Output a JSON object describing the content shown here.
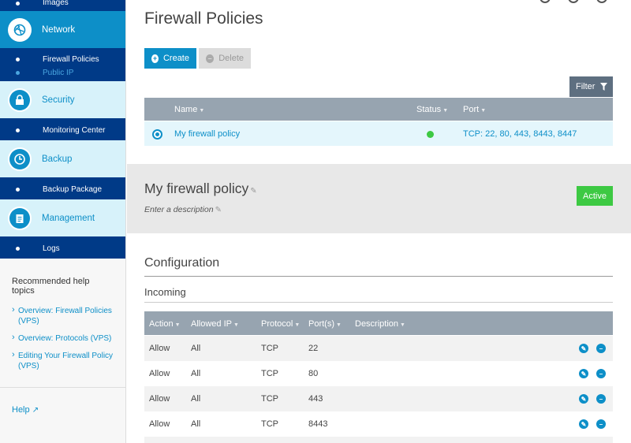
{
  "sidebar": {
    "top_sub": [
      "Images"
    ],
    "network": {
      "label": "Network",
      "sub": [
        "Firewall Policies",
        "Public IP"
      ]
    },
    "security": {
      "label": "Security",
      "sub": [
        "Monitoring Center"
      ]
    },
    "backup": {
      "label": "Backup",
      "sub": [
        "Backup Package"
      ]
    },
    "management": {
      "label": "Management",
      "sub": [
        "Logs"
      ]
    },
    "help_title": "Recommended help topics",
    "help_links": [
      "Overview: Firewall Policies (VPS)",
      "Overview: Protocols (VPS)",
      "Editing Your Firewall Policy (VPS)"
    ],
    "help": "Help"
  },
  "main": {
    "title": "Firewall Policies",
    "create_label": "Create",
    "delete_label": "Delete",
    "filter_label": "Filter",
    "policy_table": {
      "headers": {
        "name": "Name",
        "status": "Status",
        "port": "Port"
      },
      "row": {
        "name": "My firewall policy",
        "port": "TCP: 22, 80, 443, 8443, 8447"
      }
    },
    "detail": {
      "name": "My firewall policy",
      "description_placeholder": "Enter a description",
      "status": "Active"
    },
    "config_title": "Configuration",
    "incoming_title": "Incoming",
    "incoming_table": {
      "headers": {
        "action": "Action",
        "allowed_ip": "Allowed IP",
        "protocol": "Protocol",
        "ports": "Port(s)",
        "description": "Description"
      },
      "rows": [
        {
          "action": "Allow",
          "allowed_ip": "All",
          "protocol": "TCP",
          "ports": "22"
        },
        {
          "action": "Allow",
          "allowed_ip": "All",
          "protocol": "TCP",
          "ports": "80"
        },
        {
          "action": "Allow",
          "allowed_ip": "All",
          "protocol": "TCP",
          "ports": "443"
        },
        {
          "action": "Allow",
          "allowed_ip": "All",
          "protocol": "TCP",
          "ports": "8443"
        }
      ]
    }
  },
  "colors": {
    "accent": "#0d8fc8",
    "navy": "#003a87",
    "active": "#3dc943",
    "header": "#97a4b0"
  }
}
